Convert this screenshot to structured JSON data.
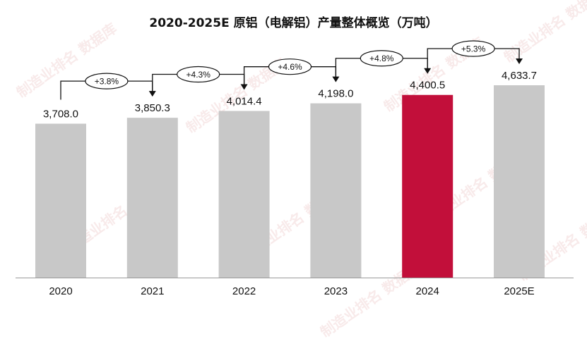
{
  "watermark_text": "制造业排名 数据库",
  "colors": {
    "bar": "#C8C8C8",
    "highlight": "#C20F3A",
    "text": "#111111",
    "axis": "#999999",
    "arrow": "#111111"
  },
  "chart_data": {
    "type": "bar",
    "title": "2020-2025E 原铝（电解铝）产量整体概览（万吨）",
    "xlabel": "",
    "ylabel": "",
    "categories": [
      "2020",
      "2021",
      "2022",
      "2023",
      "2024",
      "2025E"
    ],
    "values": [
      3708.0,
      3850.3,
      4014.4,
      4198.0,
      4400.5,
      4633.7
    ],
    "value_labels": [
      "3,708.0",
      "3,850.3",
      "4,014.4",
      "4,198.0",
      "4,400.5",
      "4,633.7"
    ],
    "growth_labels": [
      "+3.8%",
      "+4.3%",
      "+4.6%",
      "+4.8%",
      "+5.3%"
    ],
    "highlight_index": 4,
    "ylim": [
      0,
      5000
    ],
    "grid": false,
    "legend": "none"
  }
}
